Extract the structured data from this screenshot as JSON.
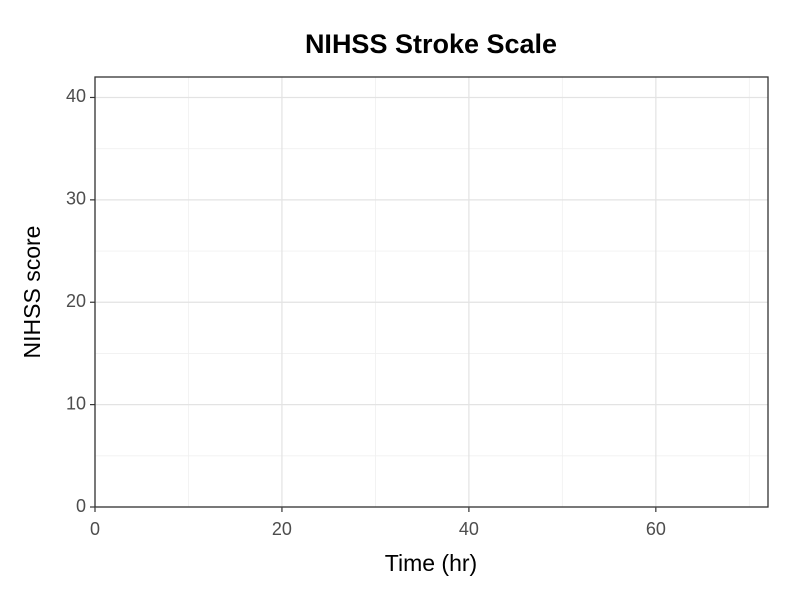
{
  "chart_data": {
    "type": "line",
    "title": "NIHSS Stroke Scale",
    "x_label": "Time (hr)",
    "y_label": "NIHSS score",
    "series": [],
    "xlim": [
      0,
      72
    ],
    "xticks": [
      0,
      20,
      40,
      60
    ],
    "xminor_ticks": [
      10,
      30,
      50,
      70
    ],
    "ylim": [
      0,
      42
    ],
    "yticks": [
      0,
      10,
      20,
      30,
      40
    ],
    "yminor_ticks": [
      5,
      15,
      25,
      35
    ],
    "grid": true
  }
}
